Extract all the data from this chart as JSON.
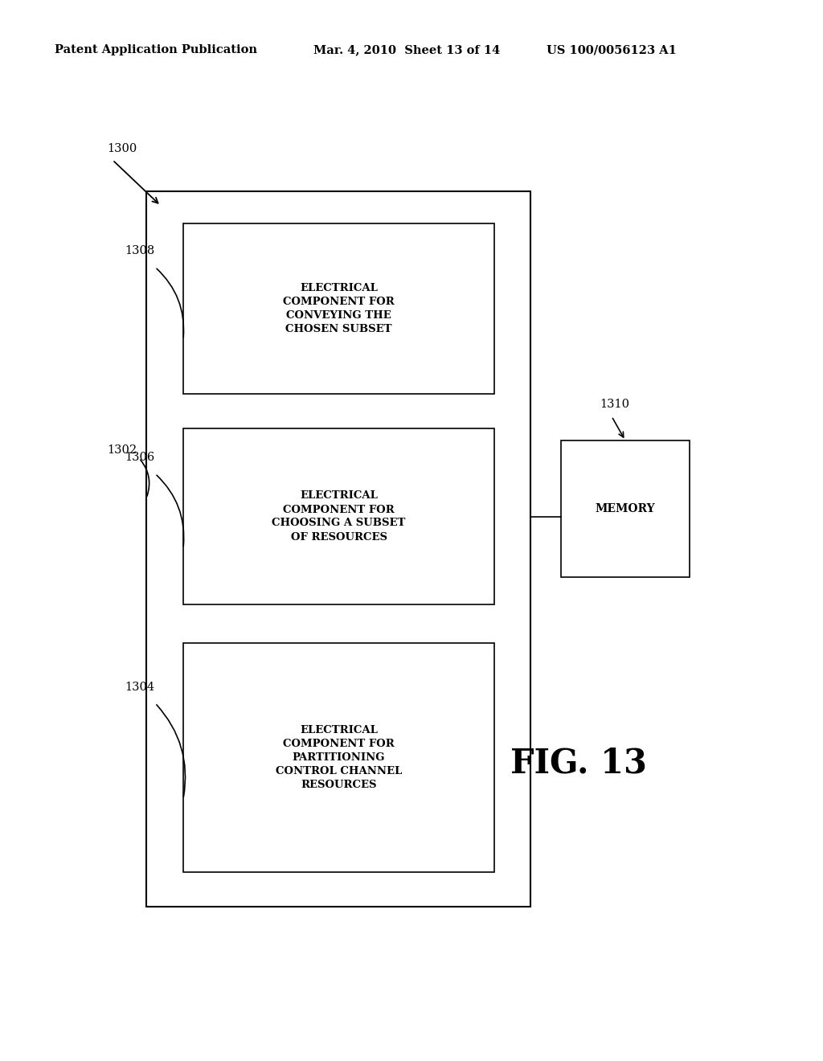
{
  "bg_color": "#ffffff",
  "header_left": "Patent Application Publication",
  "header_mid": "Mar. 4, 2010  Sheet 13 of 14",
  "header_right": "US 100/0056123 A1",
  "fig_label": "FIG. 13",
  "label_1300": "1300",
  "label_1302": "1302",
  "label_1308": "1308",
  "label_1306": "1306",
  "label_1304": "1304",
  "label_1310": "1310",
  "memory_text": "MEMORY",
  "text_1308": "ELECTRICAL\nCOMPONENT FOR\nCONVEYING THE\nCHOSEN SUBSET",
  "text_1306": "ELECTRICAL\nCOMPONENT FOR\nCHOOSING A SUBSET\nOF RESOURCES",
  "text_1304": "ELECTRICAL\nCOMPONENT FOR\nPARTITIONING\nCONTROL CHANNEL\nRESOURCES"
}
